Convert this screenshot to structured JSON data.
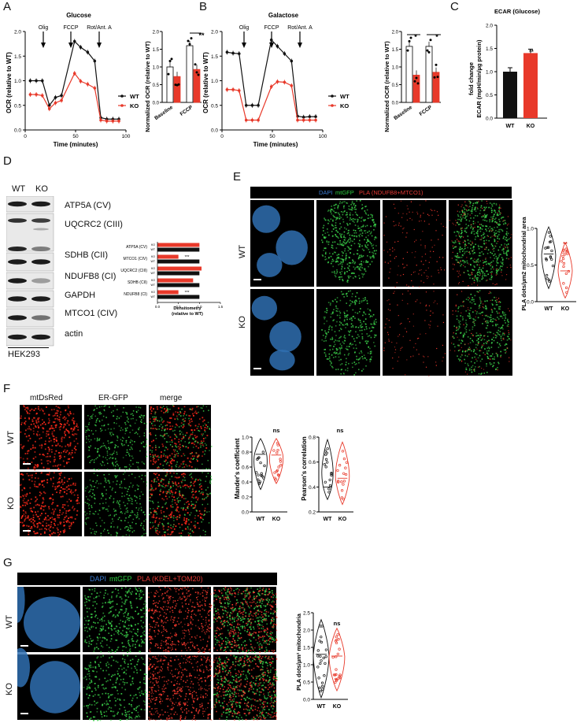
{
  "panel_letters": [
    "A",
    "B",
    "C",
    "D",
    "E",
    "F",
    "G"
  ],
  "panelA": {
    "title": "Glucose",
    "ylabel": "OCR (relative to WT)",
    "xlabel": "Time (minutes)",
    "arrows": [
      "Olig",
      "FCCP",
      "Rot/Ant. A"
    ],
    "legend": [
      "WT",
      "KO"
    ],
    "bar": {
      "ylabel": "Normalized OCR (relative to WT)",
      "categories": [
        "Baseline",
        "FCCP"
      ],
      "sig": "**"
    }
  },
  "panelB": {
    "title": "Galactose",
    "ylabel": "OCR (relative to WT)",
    "xlabel": "Time (minutes)",
    "arrows": [
      "Olig",
      "FCCP",
      "Rot/Ant. A"
    ],
    "legend": [
      "WT",
      "KO"
    ],
    "bar": {
      "ylabel": "Normalized OCR (relative to WT)",
      "categories": [
        "Baseline",
        "FCCP"
      ],
      "sig1": "*",
      "sig2": "*"
    }
  },
  "panelC": {
    "title": "ECAR (Glucose)",
    "ylabel1": "fold change",
    "ylabel2": "ECAR (mpH/min/µg protein)",
    "categories": [
      "WT",
      "KO"
    ],
    "sig": "**"
  },
  "panelD": {
    "col_labels": [
      "WT",
      "KO"
    ],
    "bands": [
      "ATP5A (CV)",
      "UQCRC2 (CIII)",
      "SDHB (CII)",
      "NDUFB8 (CI)",
      "GAPDH",
      "MTCO1 (CIV)",
      "actin"
    ],
    "cell_line": "HEK293",
    "dens": {
      "xlabel1": "Densitometry",
      "xlabel2": "(relative to WT)",
      "labels": [
        "ATP5A (CV)",
        "MTCO1 (CIV)",
        "UQCRC2 (CIII)",
        "SDHB (CII)",
        "NDUFB8 (CI)"
      ],
      "sig_mtco1": "***",
      "sig_ndufb8": "***",
      "ko": "KO",
      "wt": "WT"
    }
  },
  "panelE": {
    "hdr_dapi": "DAPI",
    "hdr_mtgfp": "mtGFP",
    "hdr_pla": "PLA (NDUFB8+MTCO1)",
    "rows": [
      "WT",
      "KO"
    ],
    "ylabel": "PLA dots/µm2 mitochondrial area",
    "categories": [
      "WT",
      "KO"
    ],
    "sig": "**"
  },
  "panelF": {
    "headers": [
      "mtDsRed",
      "ER-GFP",
      "merge"
    ],
    "rows": [
      "WT",
      "KO"
    ],
    "plot1": {
      "ylabel": "Mander's coefficient",
      "categories": [
        "WT",
        "KO"
      ],
      "sig": "ns"
    },
    "plot2": {
      "ylabel": "Pearson's correlation",
      "categories": [
        "WT",
        "KO"
      ],
      "sig": "ns"
    }
  },
  "panelG": {
    "hdr_dapi": "DAPI",
    "hdr_mtgfp": "mtGFP",
    "hdr_pla": "PLA (KDEL+TOM20)",
    "rows": [
      "WT",
      "KO"
    ],
    "ylabel": "PLA dots/µm² mitochondria",
    "categories": [
      "WT",
      "KO"
    ],
    "sig": "ns"
  },
  "chart_data": [
    {
      "type": "line",
      "title": "Glucose",
      "xlabel": "Time (minutes)",
      "ylabel": "OCR (relative to WT)",
      "xlim": [
        0,
        100
      ],
      "ylim": [
        0,
        2.0
      ],
      "series": [
        {
          "name": "WT",
          "x": [
            5,
            11,
            17,
            24,
            30,
            36,
            49,
            55,
            62,
            69,
            75,
            81,
            87,
            93
          ],
          "y": [
            1.0,
            1.0,
            1.0,
            0.5,
            0.66,
            0.7,
            1.8,
            1.68,
            1.58,
            1.4,
            0.25,
            0.22,
            0.22,
            0.22
          ]
        },
        {
          "name": "KO",
          "x": [
            5,
            11,
            17,
            24,
            30,
            36,
            49,
            55,
            62,
            69,
            75,
            81,
            87,
            93
          ],
          "y": [
            0.72,
            0.72,
            0.7,
            0.43,
            0.55,
            0.6,
            1.15,
            0.99,
            0.93,
            0.85,
            0.2,
            0.18,
            0.18,
            0.18
          ]
        }
      ]
    },
    {
      "type": "bar",
      "ylabel": "Normalized OCR (relative to WT)",
      "categories": [
        "Baseline",
        "FCCP"
      ],
      "ylim": [
        0,
        2.0
      ],
      "series": [
        {
          "name": "WT",
          "values": [
            1.0,
            1.6
          ]
        },
        {
          "name": "KO",
          "values": [
            0.73,
            0.93
          ]
        }
      ]
    },
    {
      "type": "line",
      "title": "Galactose",
      "xlabel": "Time (minutes)",
      "ylabel": "OCR (relative to WT)",
      "xlim": [
        0,
        100
      ],
      "ylim": [
        0,
        2.0
      ],
      "series": [
        {
          "name": "WT",
          "x": [
            5,
            11,
            17,
            24,
            30,
            36,
            49,
            55,
            62,
            69,
            75,
            81,
            87,
            93
          ],
          "y": [
            1.58,
            1.56,
            1.55,
            0.5,
            0.5,
            0.5,
            1.83,
            1.7,
            1.55,
            1.4,
            0.28,
            0.26,
            0.27,
            0.27
          ]
        },
        {
          "name": "KO",
          "x": [
            5,
            11,
            17,
            24,
            30,
            36,
            49,
            55,
            62,
            69,
            75,
            81,
            87,
            93
          ],
          "y": [
            0.82,
            0.82,
            0.8,
            0.2,
            0.2,
            0.2,
            0.88,
            0.98,
            0.97,
            0.9,
            0.2,
            0.2,
            0.2,
            0.2
          ]
        }
      ]
    },
    {
      "type": "bar",
      "ylabel": "Normalized OCR (relative to WT)",
      "categories": [
        "Baseline",
        "FCCP"
      ],
      "ylim": [
        0,
        2.0
      ],
      "series": [
        {
          "name": "WT",
          "values": [
            1.58,
            1.58
          ]
        },
        {
          "name": "KO",
          "values": [
            0.77,
            0.85
          ]
        }
      ]
    },
    {
      "type": "bar",
      "title": "ECAR (Glucose)",
      "ylabel": "fold change ECAR (mpH/min/µg protein)",
      "categories": [
        "WT",
        "KO"
      ],
      "ylim": [
        0,
        2.0
      ],
      "values": [
        1.0,
        1.4
      ]
    },
    {
      "type": "bar",
      "xlabel": "Densitometry (relative to WT)",
      "categories": [
        "ATP5A (CV)",
        "MTCO1 (CIV)",
        "UQCRC2 (CIII)",
        "SDHB (CII)",
        "NDUFB8 (CI)"
      ],
      "xlim": [
        0,
        1.5
      ],
      "series": [
        {
          "name": "KO",
          "values": [
            1.0,
            0.5,
            1.05,
            0.85,
            0.5
          ]
        },
        {
          "name": "WT",
          "values": [
            1.0,
            1.0,
            1.0,
            1.0,
            1.0
          ]
        }
      ]
    },
    {
      "type": "scatter",
      "ylabel": "PLA dots/µm2 mitochondrial area",
      "categories": [
        "WT",
        "KO"
      ],
      "ylim": [
        0,
        1.0
      ]
    },
    {
      "type": "scatter",
      "ylabel": "Mander's coefficient",
      "categories": [
        "WT",
        "KO"
      ],
      "ylim": [
        0,
        1.0
      ]
    },
    {
      "type": "scatter",
      "ylabel": "Pearson's correlation",
      "categories": [
        "WT",
        "KO"
      ],
      "ylim": [
        0.2,
        0.8
      ]
    },
    {
      "type": "scatter",
      "ylabel": "PLA dots/µm² mitochondria",
      "categories": [
        "WT",
        "KO"
      ],
      "ylim": [
        0,
        2.5
      ]
    }
  ]
}
